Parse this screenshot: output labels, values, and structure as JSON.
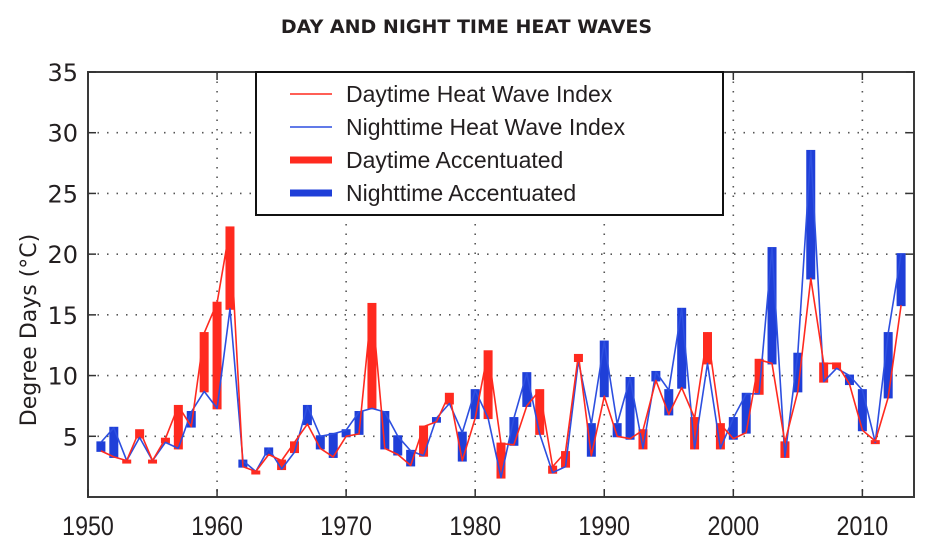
{
  "chart_data": {
    "type": "line",
    "title": "DAY AND NIGHT TIME HEAT WAVES",
    "xlabel": "",
    "ylabel": "Degree Days (°C)",
    "xlim": [
      1950,
      2014
    ],
    "ylim": [
      0,
      35
    ],
    "xticks": [
      1950,
      1960,
      1970,
      1980,
      1990,
      2000,
      2010
    ],
    "yticks": [
      5,
      10,
      15,
      20,
      25,
      30,
      35
    ],
    "grid": true,
    "legend_position": "top-center",
    "legend": [
      {
        "label": "Daytime Heat Wave Index",
        "color": "#ff2a1f",
        "style": "thin-line"
      },
      {
        "label": "Nighttime Heat Wave Index",
        "color": "#2d4fe0",
        "style": "thin-line"
      },
      {
        "label": "Daytime Accentuated",
        "color": "#ff2a1f",
        "style": "thick-bar"
      },
      {
        "label": "Nighttime Accentuated",
        "color": "#1f3fd8",
        "style": "thick-bar"
      }
    ],
    "x": [
      1951,
      1952,
      1953,
      1954,
      1955,
      1956,
      1957,
      1958,
      1959,
      1960,
      1961,
      1962,
      1963,
      1964,
      1965,
      1966,
      1967,
      1968,
      1969,
      1970,
      1971,
      1972,
      1973,
      1974,
      1975,
      1976,
      1977,
      1978,
      1979,
      1980,
      1981,
      1982,
      1983,
      1984,
      1985,
      1986,
      1987,
      1988,
      1989,
      1990,
      1991,
      1992,
      1993,
      1994,
      1995,
      1996,
      1997,
      1998,
      1999,
      2000,
      2001,
      2002,
      2003,
      2004,
      2005,
      2006,
      2007,
      2008,
      2009,
      2010,
      2011,
      2012,
      2013
    ],
    "series": [
      {
        "name": "Daytime Heat Wave Index",
        "color": "#ff2a1f",
        "values": [
          3.8,
          3.3,
          3.0,
          5.5,
          3.0,
          4.8,
          7.5,
          5.8,
          13.5,
          16.0,
          22.2,
          2.5,
          2.1,
          3.5,
          3.0,
          4.5,
          6.0,
          4.0,
          3.3,
          5.0,
          5.2,
          15.9,
          4.0,
          3.5,
          2.6,
          5.8,
          6.2,
          8.5,
          3.0,
          6.5,
          12.0,
          4.4,
          4.3,
          7.5,
          8.8,
          2.5,
          3.7,
          11.7,
          3.4,
          8.3,
          5.0,
          4.8,
          5.5,
          9.6,
          6.8,
          9.0,
          6.5,
          13.5,
          6.0,
          4.8,
          5.3,
          11.3,
          11.0,
          4.5,
          8.7,
          18.0,
          11.0,
          11.0,
          9.3,
          5.5,
          4.6,
          8.2,
          15.8
        ]
      },
      {
        "name": "Nighttime Heat Wave Index",
        "color": "#2d4fe0",
        "values": [
          4.5,
          5.7,
          3.0,
          4.9,
          3.0,
          4.5,
          4.0,
          7.0,
          8.7,
          7.3,
          15.5,
          3.0,
          2.1,
          4.0,
          2.3,
          3.7,
          7.5,
          5.0,
          5.2,
          5.5,
          7.0,
          7.3,
          7.0,
          5.0,
          3.8,
          3.4,
          6.5,
          7.7,
          5.3,
          8.8,
          6.5,
          1.6,
          6.5,
          10.2,
          5.2,
          2.0,
          2.5,
          11.2,
          6.0,
          12.8,
          6.0,
          9.8,
          4.0,
          10.3,
          8.8,
          15.5,
          4.0,
          11.0,
          4.0,
          6.5,
          8.5,
          8.5,
          20.5,
          3.3,
          11.8,
          28.5,
          9.5,
          10.6,
          10.0,
          8.8,
          4.5,
          13.5,
          20.0
        ]
      }
    ]
  }
}
